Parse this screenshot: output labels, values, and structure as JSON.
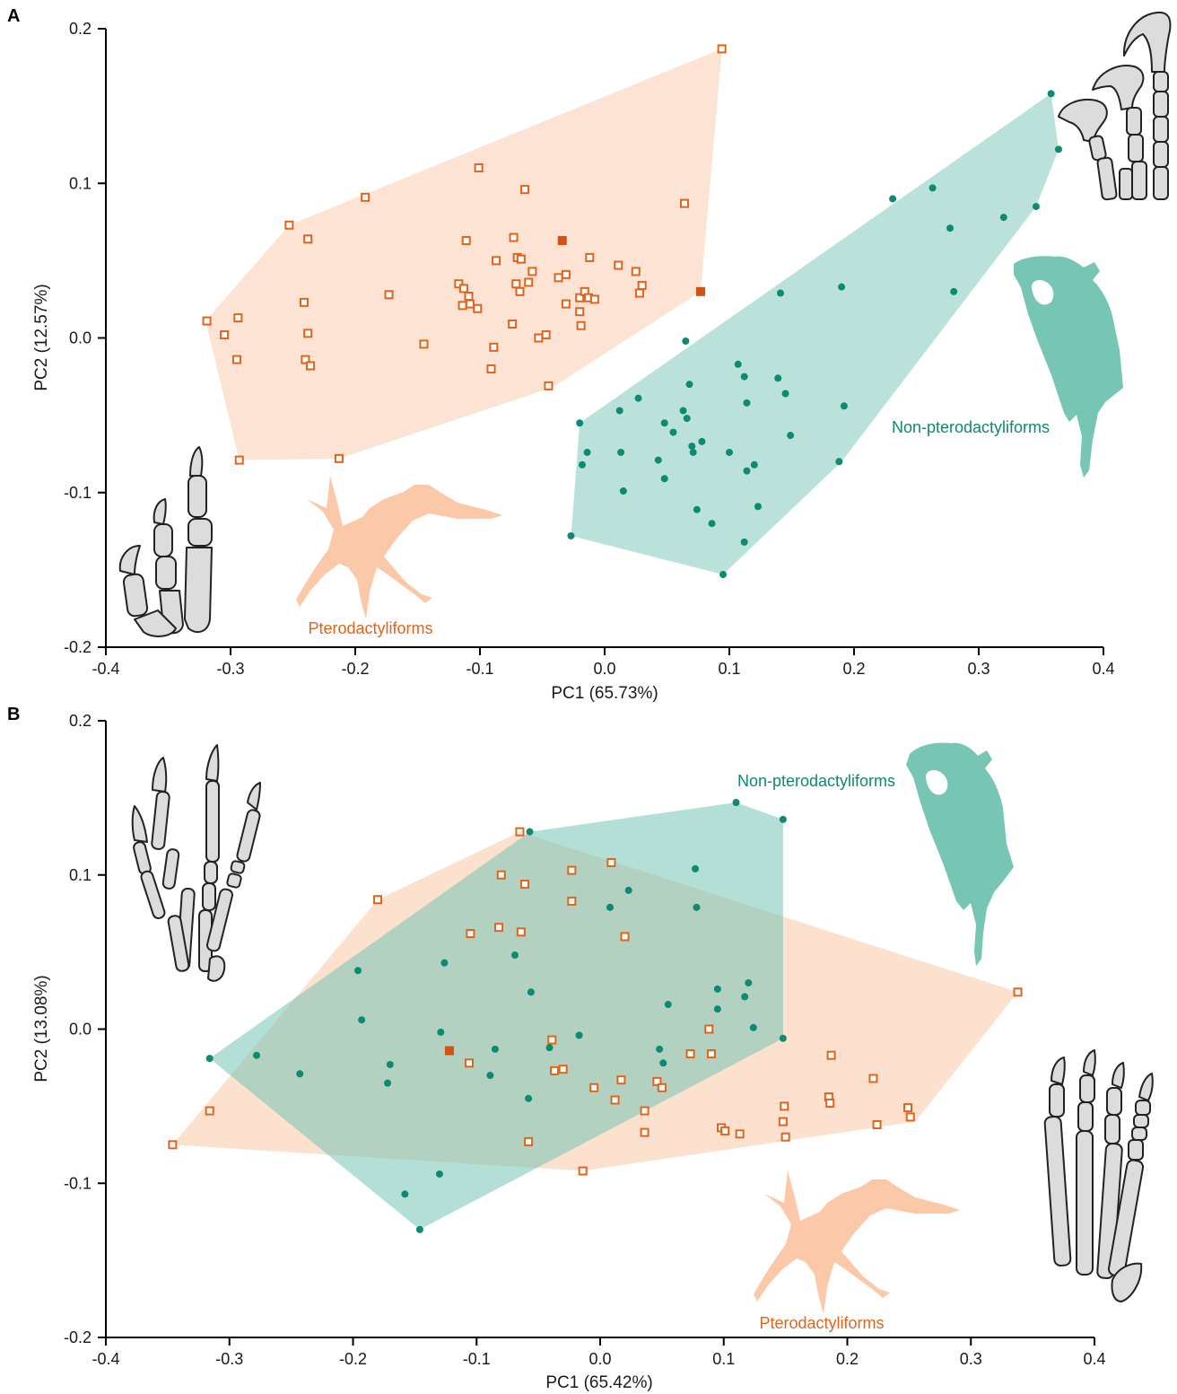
{
  "chart_data": [
    {
      "panel": "A",
      "type": "scatter",
      "xlabel": "PC1 (65.73%)",
      "ylabel": "PC2 (12.57%)",
      "xlim": [
        -0.4,
        0.4
      ],
      "ylim": [
        -0.2,
        0.2
      ],
      "xticks": [
        -0.4,
        -0.3,
        -0.2,
        -0.1,
        0.0,
        0.1,
        0.2,
        0.3,
        0.4
      ],
      "yticks": [
        -0.2,
        -0.1,
        0.0,
        0.1,
        0.2
      ],
      "xtick_labels": [
        "-0.4",
        "-0.3",
        "-0.2",
        "-0.1",
        "0.0",
        "0.1",
        "0.2",
        "0.3",
        "0.4"
      ],
      "ytick_labels": [
        "-0.2",
        "-0.1",
        "0.0",
        "0.1",
        "0.2"
      ],
      "labels": {
        "pterodactyliforms": "Pterodactyliforms",
        "non_pterodactyliforms": "Non-pterodactyliforms"
      },
      "colors": {
        "ptero_marker": "#e2641b",
        "ptero_fill": "#fbc8a8",
        "non_marker": "#0d8a72",
        "non_fill": "#77c5b5"
      },
      "series": [
        {
          "name": "Pterodactyliforms",
          "marker": "open-square",
          "hull": [
            [
              0.094,
              0.187
            ],
            [
              0.077,
              0.03
            ],
            [
              -0.042,
              -0.032
            ],
            [
              -0.213,
              -0.078
            ],
            [
              -0.293,
              -0.079
            ],
            [
              -0.32,
              0.011
            ],
            [
              -0.253,
              0.073
            ]
          ],
          "points": [
            [
              0.094,
              0.187
            ],
            [
              -0.101,
              0.11
            ],
            [
              -0.192,
              0.091
            ],
            [
              -0.064,
              0.096
            ],
            [
              -0.253,
              0.073
            ],
            [
              -0.238,
              0.064
            ],
            [
              0.064,
              0.087
            ],
            [
              -0.111,
              0.063
            ],
            [
              -0.073,
              0.065
            ],
            [
              -0.07,
              0.052
            ],
            [
              -0.067,
              0.051
            ],
            [
              -0.087,
              0.05
            ],
            [
              -0.012,
              0.052
            ],
            [
              0.011,
              0.047
            ],
            [
              0.025,
              0.043
            ],
            [
              -0.058,
              0.043
            ],
            [
              -0.173,
              0.028
            ],
            [
              -0.241,
              0.023
            ],
            [
              -0.117,
              0.035
            ],
            [
              -0.113,
              0.032
            ],
            [
              -0.109,
              0.027
            ],
            [
              -0.108,
              0.022
            ],
            [
              -0.114,
              0.021
            ],
            [
              -0.102,
              0.019
            ],
            [
              -0.071,
              0.035
            ],
            [
              -0.061,
              0.036
            ],
            [
              -0.068,
              0.03
            ],
            [
              -0.037,
              0.039
            ],
            [
              -0.031,
              0.041
            ],
            [
              -0.02,
              0.026
            ],
            [
              -0.016,
              0.03
            ],
            [
              -0.013,
              0.026
            ],
            [
              -0.008,
              0.025
            ],
            [
              -0.031,
              0.022
            ],
            [
              -0.02,
              0.017
            ],
            [
              -0.019,
              0.008
            ],
            [
              0.03,
              0.034
            ],
            [
              0.028,
              0.029
            ],
            [
              -0.319,
              0.011
            ],
            [
              -0.294,
              0.013
            ],
            [
              -0.305,
              0.002
            ],
            [
              -0.238,
              0.003
            ],
            [
              -0.074,
              0.009
            ],
            [
              -0.053,
              0.0
            ],
            [
              -0.047,
              0.002
            ],
            [
              -0.145,
              -0.004
            ],
            [
              -0.089,
              -0.006
            ],
            [
              -0.295,
              -0.014
            ],
            [
              -0.24,
              -0.014
            ],
            [
              -0.236,
              -0.018
            ],
            [
              -0.091,
              -0.02
            ],
            [
              -0.045,
              -0.031
            ],
            [
              -0.293,
              -0.079
            ],
            [
              -0.213,
              -0.078
            ]
          ]
        },
        {
          "name": "Pterodactyliforms",
          "marker": "filled-square",
          "points": [
            [
              -0.034,
              0.063
            ],
            [
              0.077,
              0.03
            ]
          ]
        },
        {
          "name": "Non-pterodactyliforms",
          "marker": "dot",
          "hull": [
            [
              0.358,
              0.158
            ],
            [
              0.364,
              0.122
            ],
            [
              0.346,
              0.085
            ],
            [
              0.19,
              -0.08
            ],
            [
              0.095,
              -0.153
            ],
            [
              -0.027,
              -0.128
            ],
            [
              -0.02,
              -0.055
            ]
          ],
          "points": [
            [
              0.358,
              0.158
            ],
            [
              0.364,
              0.122
            ],
            [
              0.231,
              0.09
            ],
            [
              0.263,
              0.097
            ],
            [
              0.277,
              0.071
            ],
            [
              0.32,
              0.078
            ],
            [
              0.346,
              0.085
            ],
            [
              0.28,
              0.03
            ],
            [
              0.19,
              0.033
            ],
            [
              0.141,
              0.029
            ],
            [
              0.065,
              -0.002
            ],
            [
              0.107,
              -0.017
            ],
            [
              0.112,
              -0.025
            ],
            [
              0.139,
              -0.026
            ],
            [
              0.145,
              -0.036
            ],
            [
              0.068,
              -0.03
            ],
            [
              0.027,
              -0.039
            ],
            [
              0.114,
              -0.042
            ],
            [
              0.192,
              -0.044
            ],
            [
              0.012,
              -0.047
            ],
            [
              0.063,
              -0.047
            ],
            [
              0.066,
              -0.052
            ],
            [
              0.048,
              -0.055
            ],
            [
              -0.02,
              -0.055
            ],
            [
              0.055,
              -0.061
            ],
            [
              0.149,
              -0.063
            ],
            [
              0.078,
              -0.067
            ],
            [
              0.07,
              -0.07
            ],
            [
              0.071,
              -0.074
            ],
            [
              -0.014,
              -0.074
            ],
            [
              0.013,
              -0.074
            ],
            [
              0.1,
              -0.074
            ],
            [
              0.043,
              -0.079
            ],
            [
              0.12,
              -0.082
            ],
            [
              -0.018,
              -0.082
            ],
            [
              0.114,
              -0.086
            ],
            [
              0.048,
              -0.091
            ],
            [
              0.188,
              -0.08
            ],
            [
              0.015,
              -0.099
            ],
            [
              0.074,
              -0.111
            ],
            [
              0.123,
              -0.109
            ],
            [
              0.086,
              -0.12
            ],
            [
              0.112,
              -0.132
            ],
            [
              -0.027,
              -0.128
            ],
            [
              0.095,
              -0.153
            ]
          ]
        }
      ]
    },
    {
      "panel": "B",
      "type": "scatter",
      "xlabel": "PC1 (65.42%)",
      "ylabel": "PC2 (13.08%)",
      "xlim": [
        -0.4,
        0.4
      ],
      "ylim": [
        -0.2,
        0.2
      ],
      "xticks": [
        -0.4,
        -0.3,
        -0.2,
        -0.1,
        0.0,
        0.1,
        0.2,
        0.3,
        0.4
      ],
      "yticks": [
        -0.2,
        -0.1,
        0.0,
        0.1,
        0.2
      ],
      "xtick_labels": [
        "-0.4",
        "-0.3",
        "-0.2",
        "-0.1",
        "0.0",
        "0.1",
        "0.2",
        "0.3",
        "0.4"
      ],
      "ytick_labels": [
        "-0.2",
        "-0.1",
        "0.0",
        "0.1",
        "0.2"
      ],
      "labels": {
        "pterodactyliforms": "Pterodactyliforms",
        "non_pterodactyliforms": "Non-pterodactyliforms"
      },
      "colors": {
        "ptero_marker": "#e2641b",
        "ptero_fill": "#fbc8a8",
        "non_marker": "#0d8a72",
        "non_fill": "#77c5b5"
      },
      "series": [
        {
          "name": "Pterodactyliforms",
          "marker": "open-square",
          "hull": [
            [
              -0.065,
              0.128
            ],
            [
              0.338,
              0.024
            ],
            [
              0.255,
              -0.06
            ],
            [
              -0.014,
              -0.092
            ],
            [
              -0.346,
              -0.075
            ],
            [
              -0.18,
              0.084
            ]
          ],
          "points": [
            [
              -0.065,
              0.128
            ],
            [
              -0.18,
              0.084
            ],
            [
              -0.08,
              0.1
            ],
            [
              -0.061,
              0.094
            ],
            [
              -0.023,
              0.103
            ],
            [
              0.009,
              0.108
            ],
            [
              -0.023,
              0.083
            ],
            [
              -0.105,
              0.062
            ],
            [
              -0.082,
              0.066
            ],
            [
              -0.064,
              0.063
            ],
            [
              0.02,
              0.06
            ],
            [
              0.338,
              0.024
            ],
            [
              0.088,
              0.0
            ],
            [
              -0.039,
              -0.007
            ],
            [
              -0.106,
              -0.022
            ],
            [
              -0.037,
              -0.027
            ],
            [
              -0.03,
              -0.026
            ],
            [
              0.073,
              -0.016
            ],
            [
              0.09,
              -0.016
            ],
            [
              0.187,
              -0.017
            ],
            [
              0.017,
              -0.033
            ],
            [
              0.046,
              -0.034
            ],
            [
              0.05,
              -0.038
            ],
            [
              -0.005,
              -0.038
            ],
            [
              0.012,
              -0.046
            ],
            [
              0.221,
              -0.032
            ],
            [
              0.185,
              -0.044
            ],
            [
              0.186,
              -0.048
            ],
            [
              0.149,
              -0.05
            ],
            [
              0.148,
              -0.06
            ],
            [
              0.249,
              -0.051
            ],
            [
              0.251,
              -0.057
            ],
            [
              0.036,
              -0.053
            ],
            [
              -0.316,
              -0.053
            ],
            [
              0.224,
              -0.062
            ],
            [
              0.098,
              -0.064
            ],
            [
              0.101,
              -0.066
            ],
            [
              0.036,
              -0.067
            ],
            [
              0.113,
              -0.068
            ],
            [
              0.15,
              -0.07
            ],
            [
              -0.058,
              -0.073
            ],
            [
              -0.346,
              -0.075
            ],
            [
              -0.014,
              -0.092
            ]
          ]
        },
        {
          "name": "Pterodactyliforms",
          "marker": "filled-square",
          "points": [
            [
              -0.122,
              -0.014
            ]
          ]
        },
        {
          "name": "Non-pterodactyliforms",
          "marker": "dot",
          "hull": [
            [
              -0.057,
              0.128
            ],
            [
              0.11,
              0.147
            ],
            [
              0.148,
              0.136
            ],
            [
              0.148,
              -0.006
            ],
            [
              -0.146,
              -0.13
            ],
            [
              -0.316,
              -0.019
            ]
          ],
          "points": [
            [
              0.11,
              0.147
            ],
            [
              0.148,
              0.136
            ],
            [
              -0.057,
              0.128
            ],
            [
              0.077,
              0.104
            ],
            [
              0.023,
              0.09
            ],
            [
              0.008,
              0.079
            ],
            [
              0.078,
              0.079
            ],
            [
              -0.069,
              0.048
            ],
            [
              -0.126,
              0.043
            ],
            [
              -0.196,
              0.038
            ],
            [
              0.12,
              0.03
            ],
            [
              0.095,
              0.026
            ],
            [
              -0.056,
              0.024
            ],
            [
              0.117,
              0.021
            ],
            [
              0.095,
              0.013
            ],
            [
              0.055,
              0.016
            ],
            [
              -0.193,
              0.006
            ],
            [
              0.124,
              0.001
            ],
            [
              -0.129,
              -0.002
            ],
            [
              -0.017,
              -0.004
            ],
            [
              0.148,
              -0.006
            ],
            [
              -0.041,
              -0.012
            ],
            [
              -0.085,
              -0.013
            ],
            [
              0.048,
              -0.013
            ],
            [
              -0.278,
              -0.017
            ],
            [
              -0.316,
              -0.019
            ],
            [
              0.051,
              -0.022
            ],
            [
              -0.17,
              -0.023
            ],
            [
              -0.243,
              -0.029
            ],
            [
              -0.089,
              -0.03
            ],
            [
              -0.172,
              -0.035
            ],
            [
              -0.058,
              -0.045
            ],
            [
              -0.13,
              -0.094
            ],
            [
              -0.158,
              -0.107
            ],
            [
              -0.146,
              -0.13
            ]
          ]
        }
      ]
    }
  ]
}
